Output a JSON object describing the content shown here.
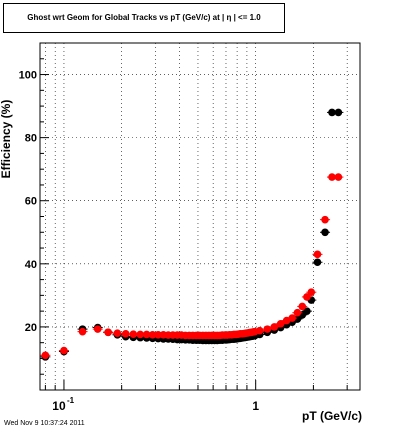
{
  "chart_data": {
    "type": "scatter",
    "title": "Ghost wrt Geom for Global Tracks vs pT (GeV/c) at |  η | <= 1.0",
    "xlabel": "pT (GeV/c)",
    "ylabel": "Efficiency (%)",
    "x_scale": "log",
    "xlim": [
      0.075,
      3.5
    ],
    "ylim": [
      0,
      110
    ],
    "x_ticks": [
      {
        "value": 0.1,
        "base": "10",
        "exp": "-1"
      },
      {
        "value": 1,
        "base": "1",
        "exp": ""
      }
    ],
    "y_ticks": [
      {
        "value": 20,
        "label": "20"
      },
      {
        "value": 40,
        "label": "40"
      },
      {
        "value": 60,
        "label": "60"
      },
      {
        "value": 80,
        "label": "80"
      },
      {
        "value": 100,
        "label": "100"
      }
    ],
    "grid": true,
    "series": [
      {
        "color": "#000000",
        "x": [
          0.08,
          0.1,
          0.125,
          0.15,
          0.17,
          0.19,
          0.21,
          0.23,
          0.25,
          0.27,
          0.29,
          0.31,
          0.33,
          0.35,
          0.37,
          0.39,
          0.41,
          0.43,
          0.45,
          0.47,
          0.49,
          0.51,
          0.53,
          0.55,
          0.57,
          0.59,
          0.61,
          0.63,
          0.65,
          0.67,
          0.69,
          0.71,
          0.73,
          0.75,
          0.77,
          0.79,
          0.81,
          0.83,
          0.85,
          0.87,
          0.89,
          0.91,
          0.93,
          0.95,
          0.97,
          0.99,
          1.05,
          1.15,
          1.25,
          1.35,
          1.45,
          1.55,
          1.65,
          1.75,
          1.85,
          1.95,
          2.1,
          2.3,
          2.5,
          2.7
        ],
        "y": [
          10.5,
          12.2,
          19.3,
          19.8,
          18.3,
          17.5,
          16.9,
          16.7,
          16.6,
          16.5,
          16.4,
          16.3,
          16.2,
          16.2,
          16.1,
          16.0,
          16.0,
          15.9,
          15.9,
          15.8,
          15.8,
          15.8,
          15.7,
          15.7,
          15.7,
          15.7,
          15.7,
          15.7,
          15.8,
          15.8,
          15.9,
          15.9,
          16.0,
          16.1,
          16.1,
          16.2,
          16.3,
          16.4,
          16.5,
          16.6,
          16.7,
          16.8,
          16.9,
          17.0,
          17.1,
          17.2,
          17.6,
          18.3,
          19.0,
          19.8,
          20.7,
          21.5,
          22.5,
          23.8,
          25.0,
          28.5,
          40.5,
          50.0,
          88.0,
          88.0
        ]
      },
      {
        "color": "#ff0000",
        "x": [
          0.08,
          0.1,
          0.125,
          0.15,
          0.17,
          0.19,
          0.21,
          0.23,
          0.25,
          0.27,
          0.29,
          0.31,
          0.33,
          0.35,
          0.37,
          0.39,
          0.41,
          0.43,
          0.45,
          0.47,
          0.49,
          0.51,
          0.53,
          0.55,
          0.57,
          0.59,
          0.61,
          0.63,
          0.65,
          0.67,
          0.69,
          0.71,
          0.73,
          0.75,
          0.77,
          0.79,
          0.81,
          0.83,
          0.85,
          0.87,
          0.89,
          0.91,
          0.93,
          0.95,
          0.97,
          0.99,
          1.05,
          1.15,
          1.25,
          1.35,
          1.45,
          1.55,
          1.65,
          1.75,
          1.85,
          1.95,
          2.1,
          2.3,
          2.5,
          2.7
        ],
        "y": [
          11.0,
          12.5,
          18.5,
          19.3,
          18.3,
          18.0,
          17.8,
          17.7,
          17.6,
          17.6,
          17.5,
          17.5,
          17.5,
          17.4,
          17.4,
          17.4,
          17.4,
          17.3,
          17.3,
          17.3,
          17.3,
          17.3,
          17.3,
          17.3,
          17.3,
          17.3,
          17.3,
          17.3,
          17.3,
          17.4,
          17.4,
          17.4,
          17.5,
          17.5,
          17.6,
          17.6,
          17.7,
          17.8,
          17.8,
          17.9,
          18.0,
          18.1,
          18.2,
          18.3,
          18.4,
          18.5,
          18.8,
          19.3,
          20.0,
          21.0,
          22.0,
          22.8,
          24.5,
          26.5,
          29.5,
          31.0,
          43.0,
          54.0,
          67.5,
          67.5
        ]
      }
    ]
  },
  "timestamp": "Wed Nov  9 10:37:24 2011"
}
